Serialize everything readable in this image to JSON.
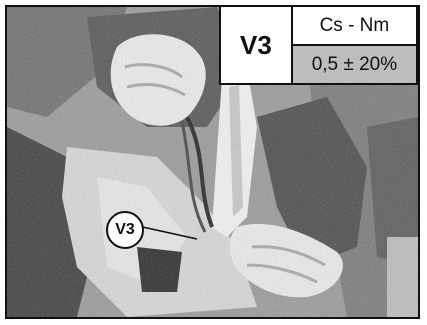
{
  "spec_table": {
    "id": "V3",
    "header": "Cs - Nm",
    "value": "0,5 ± 20%"
  },
  "callout": {
    "label": "V3"
  }
}
